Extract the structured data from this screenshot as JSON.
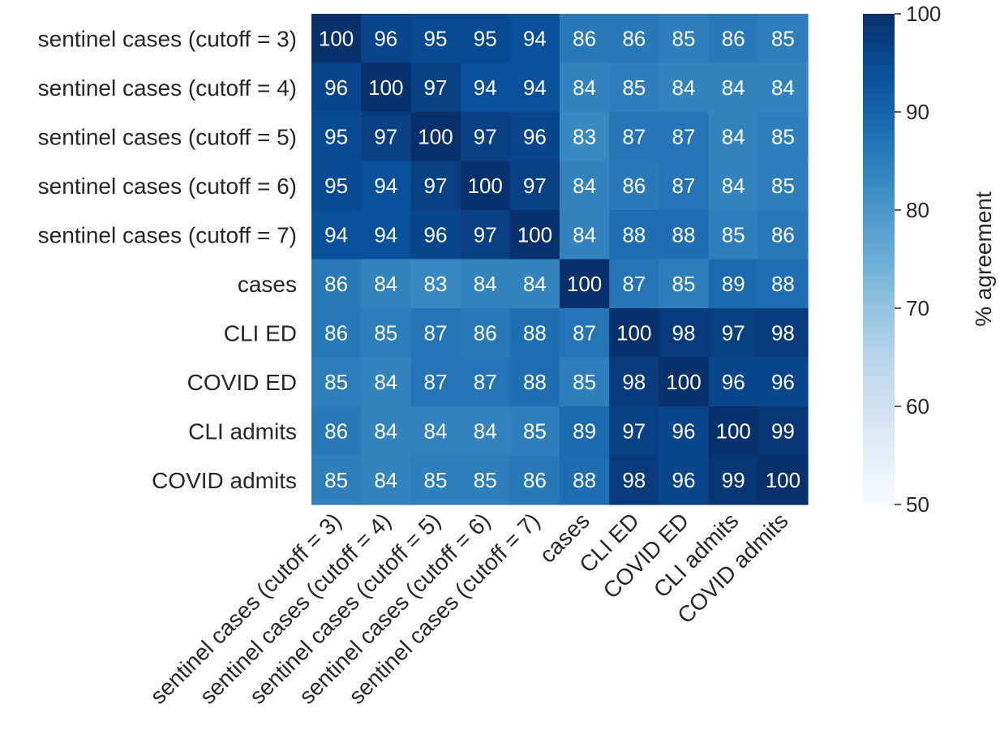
{
  "chart_data": {
    "type": "heatmap",
    "title": "",
    "row_labels": [
      "sentinel cases (cutoff = 3)",
      "sentinel cases (cutoff = 4)",
      "sentinel cases (cutoff = 5)",
      "sentinel cases (cutoff = 6)",
      "sentinel cases (cutoff = 7)",
      "cases",
      "CLI ED",
      "COVID ED",
      "CLI admits",
      "COVID admits"
    ],
    "col_labels": [
      "sentinel cases (cutoff = 3)",
      "sentinel cases (cutoff = 4)",
      "sentinel cases (cutoff = 5)",
      "sentinel cases (cutoff = 6)",
      "sentinel cases (cutoff = 7)",
      "cases",
      "CLI ED",
      "COVID ED",
      "CLI admits",
      "COVID admits"
    ],
    "values": [
      [
        100,
        96,
        95,
        95,
        94,
        86,
        86,
        85,
        86,
        85
      ],
      [
        96,
        100,
        97,
        94,
        94,
        84,
        85,
        84,
        84,
        84
      ],
      [
        95,
        97,
        100,
        97,
        96,
        83,
        87,
        87,
        84,
        85
      ],
      [
        95,
        94,
        97,
        100,
        97,
        84,
        86,
        87,
        84,
        85
      ],
      [
        94,
        94,
        96,
        97,
        100,
        84,
        88,
        88,
        85,
        86
      ],
      [
        86,
        84,
        83,
        84,
        84,
        100,
        87,
        85,
        89,
        88
      ],
      [
        86,
        85,
        87,
        86,
        88,
        87,
        100,
        98,
        97,
        98
      ],
      [
        85,
        84,
        87,
        87,
        88,
        85,
        98,
        100,
        96,
        96
      ],
      [
        86,
        84,
        84,
        84,
        85,
        89,
        97,
        96,
        100,
        99
      ],
      [
        85,
        84,
        85,
        85,
        86,
        88,
        98,
        96,
        99,
        100
      ]
    ],
    "colorbar": {
      "label": "% agreement",
      "range": [
        50,
        100
      ],
      "ticks": [
        100,
        90,
        80,
        70,
        60,
        50
      ],
      "colormap": "Blues"
    },
    "annotate": true,
    "grid": false
  }
}
